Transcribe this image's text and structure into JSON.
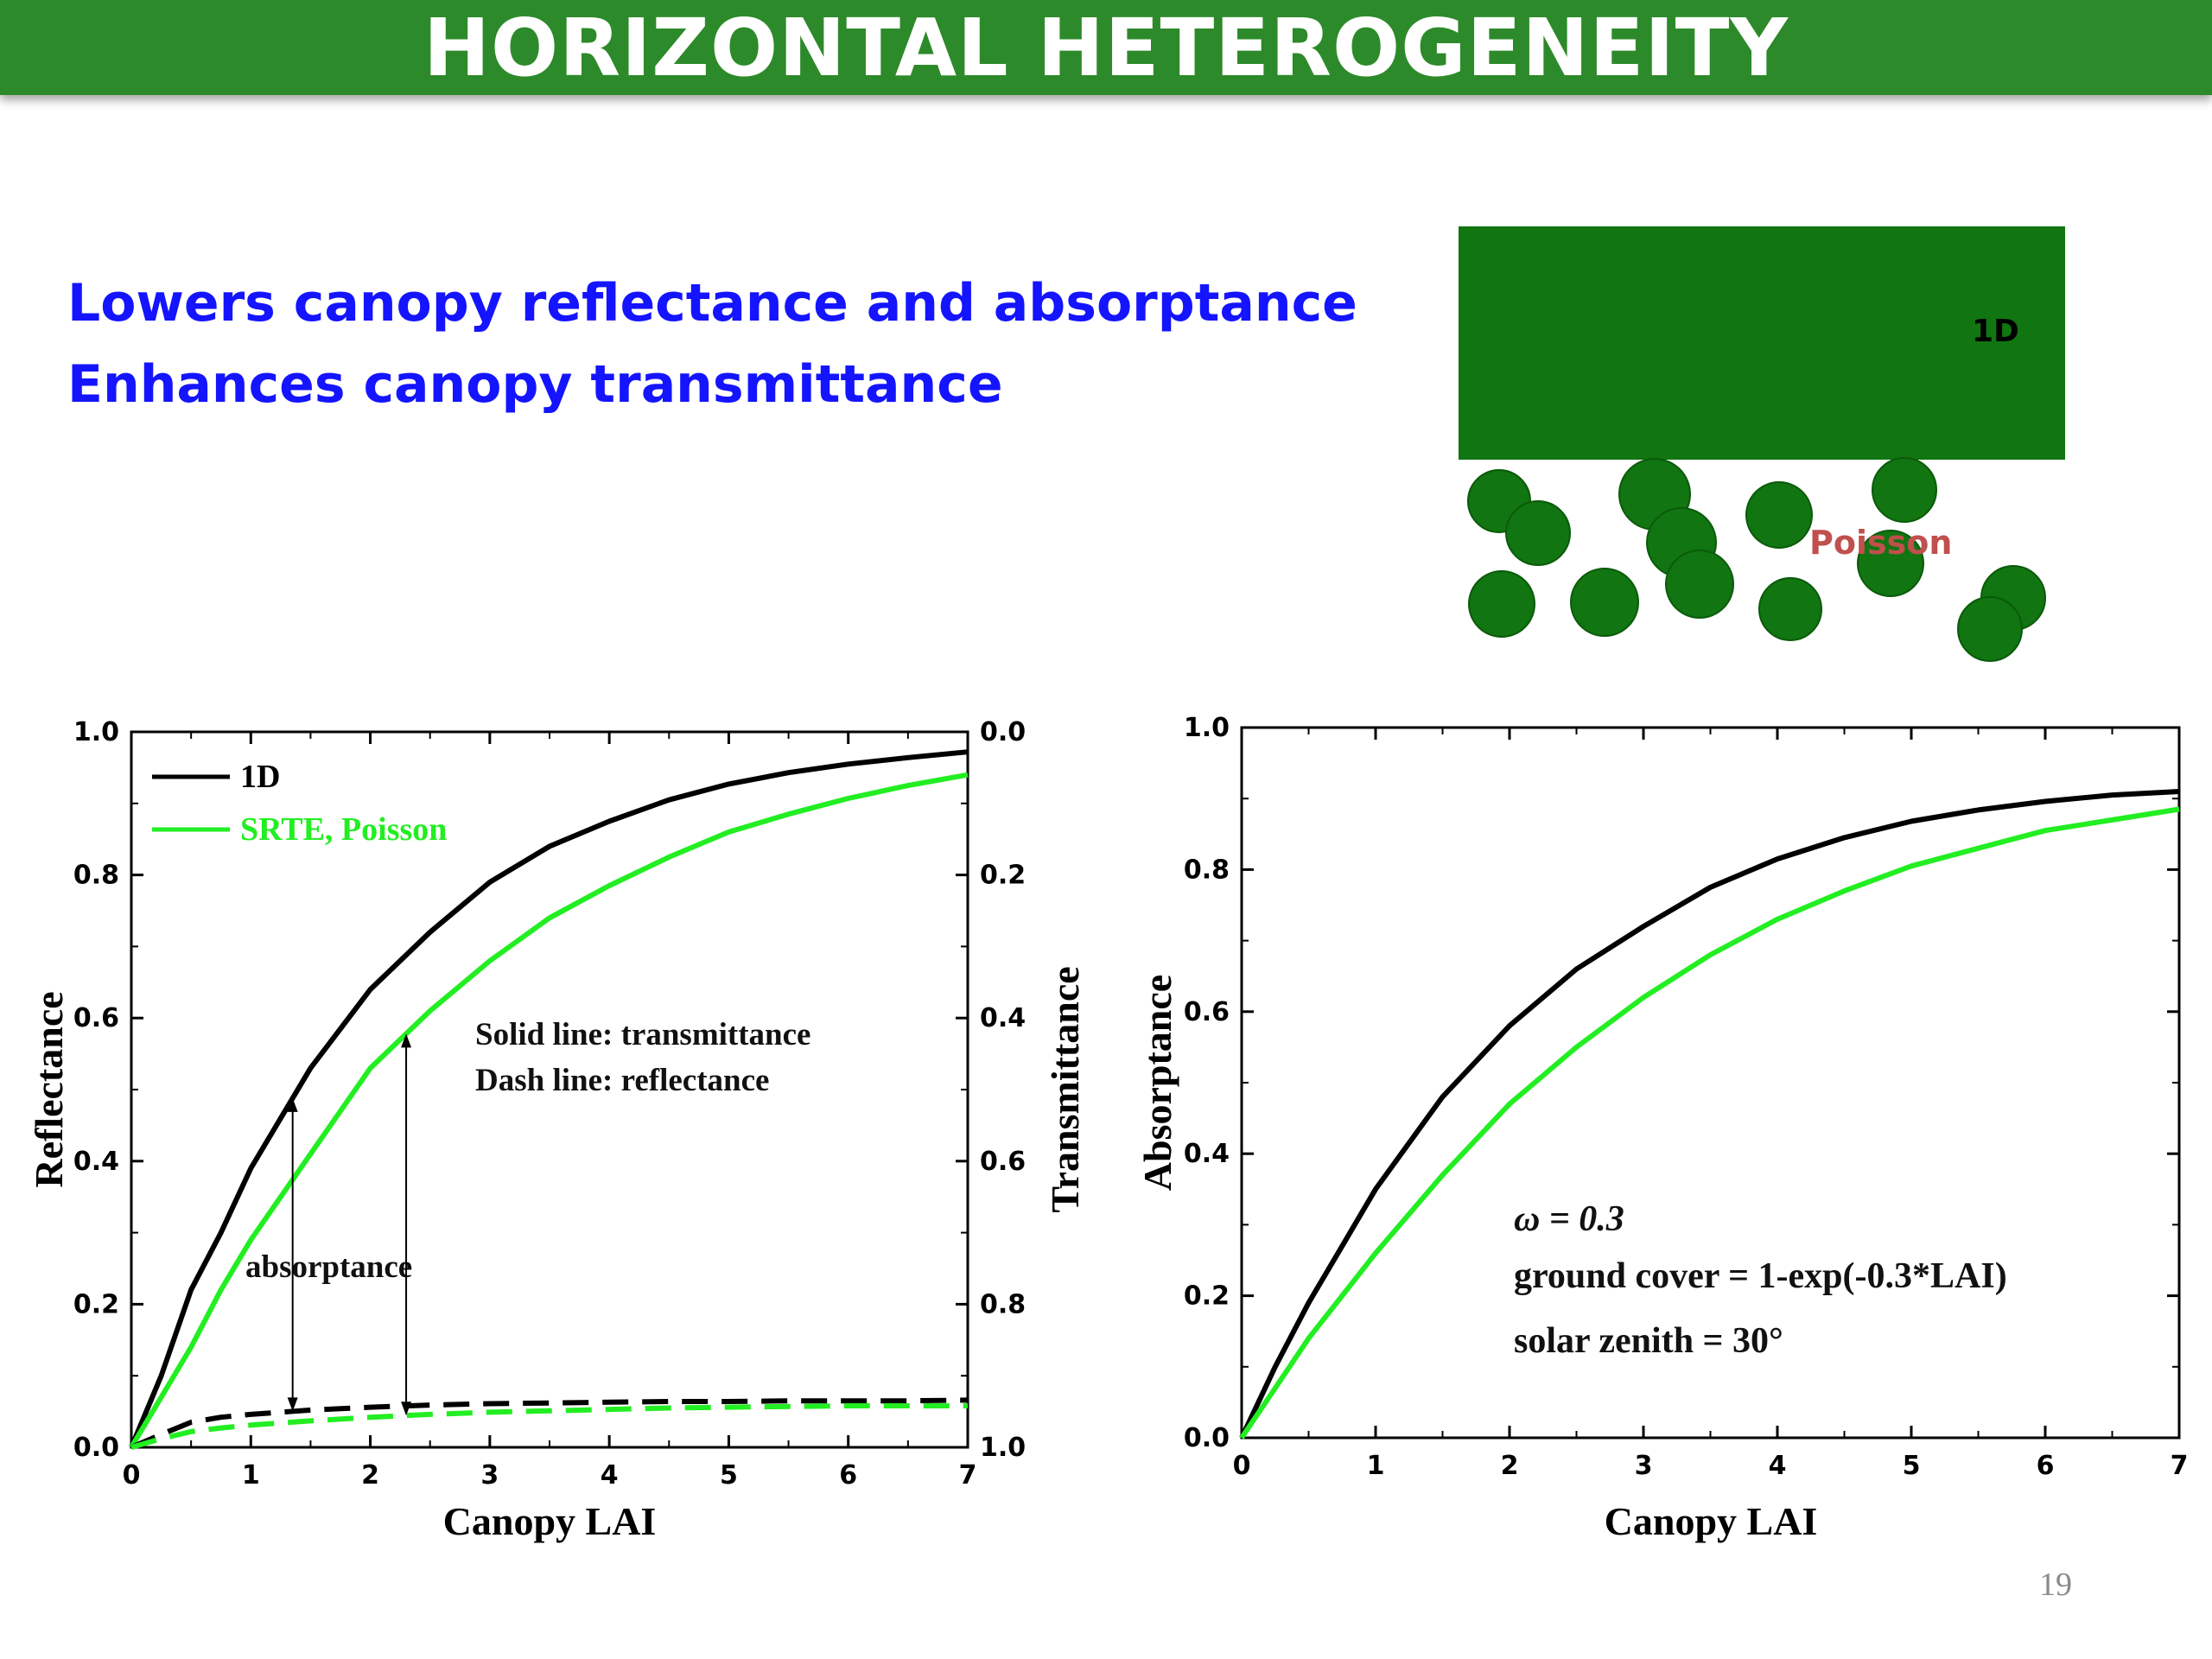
{
  "slide": {
    "title": "HORIZONTAL HETEROGENEITY",
    "bullets": [
      "Lowers canopy reflectance and absorptance",
      "Enhances canopy transmittance"
    ],
    "page_number": "19"
  },
  "diagram": {
    "label_1d": "1D",
    "label_poisson": "Poisson",
    "colors": {
      "canopy": "#117511",
      "leaf_stroke": "#0a5a0a",
      "poisson_label": "#c0504d"
    }
  },
  "colors": {
    "series_1d": "#000000",
    "series_poisson": "#22ee22",
    "accent_blue": "#1414ff",
    "banner": "#2d8a2a"
  },
  "chart_data": [
    {
      "type": "line",
      "xlabel": "Canopy LAI",
      "ylabel": "Reflectance",
      "y2label": "Transmittance",
      "xlim": [
        0,
        7
      ],
      "ylim": [
        0,
        1
      ],
      "y2lim": [
        1,
        0
      ],
      "xticks": [
        "0",
        "1",
        "2",
        "3",
        "4",
        "5",
        "6",
        "7"
      ],
      "yticks": [
        "0.0",
        "0.2",
        "0.4",
        "0.6",
        "0.8",
        "1.0"
      ],
      "y2ticks": [
        "1.0",
        "0.8",
        "0.6",
        "0.4",
        "0.2",
        "0.0"
      ],
      "legend": {
        "placement": "top-left",
        "entries": [
          "1D",
          "SRTE, Poisson"
        ]
      },
      "annotations": [
        "Solid line: transmittance",
        "Dash line: reflectance",
        "absorptance"
      ],
      "x": [
        0,
        0.25,
        0.5,
        0.75,
        1,
        1.5,
        2,
        2.5,
        3,
        3.5,
        4,
        4.5,
        5,
        5.5,
        6,
        6.5,
        7
      ],
      "series": [
        {
          "name": "1D",
          "quantity": "transmittance",
          "style": "solid",
          "color": "#000000",
          "values": [
            1.0,
            0.9,
            0.78,
            0.7,
            0.61,
            0.47,
            0.36,
            0.28,
            0.21,
            0.16,
            0.125,
            0.095,
            0.073,
            0.057,
            0.045,
            0.036,
            0.028
          ]
        },
        {
          "name": "SRTE, Poisson",
          "quantity": "transmittance",
          "style": "solid",
          "color": "#22ee22",
          "values": [
            1.0,
            0.93,
            0.86,
            0.78,
            0.71,
            0.59,
            0.47,
            0.39,
            0.32,
            0.26,
            0.215,
            0.175,
            0.14,
            0.115,
            0.093,
            0.075,
            0.06
          ]
        },
        {
          "name": "1D",
          "quantity": "reflectance",
          "style": "dash",
          "color": "#000000",
          "values": [
            0,
            0.018,
            0.035,
            0.042,
            0.046,
            0.052,
            0.056,
            0.059,
            0.061,
            0.062,
            0.063,
            0.064,
            0.064,
            0.065,
            0.065,
            0.065,
            0.066
          ]
        },
        {
          "name": "SRTE, Poisson",
          "quantity": "reflectance",
          "style": "dash",
          "color": "#22ee22",
          "values": [
            0,
            0.012,
            0.022,
            0.027,
            0.031,
            0.037,
            0.042,
            0.046,
            0.049,
            0.051,
            0.053,
            0.055,
            0.056,
            0.057,
            0.058,
            0.058,
            0.058
          ]
        }
      ]
    },
    {
      "type": "line",
      "xlabel": "Canopy LAI",
      "ylabel": "Absorptance",
      "xlim": [
        0,
        7
      ],
      "ylim": [
        0,
        1
      ],
      "xticks": [
        "0",
        "1",
        "2",
        "3",
        "4",
        "5",
        "6",
        "7"
      ],
      "yticks": [
        "0.0",
        "0.2",
        "0.4",
        "0.6",
        "0.8",
        "1.0"
      ],
      "annotations": [
        "ω = 0.3",
        "ground cover = 1-exp(-0.3*LAI)",
        "solar zenith = 30°"
      ],
      "x": [
        0,
        0.25,
        0.5,
        0.75,
        1,
        1.5,
        2,
        2.5,
        3,
        3.5,
        4,
        4.5,
        5,
        5.5,
        6,
        6.5,
        7
      ],
      "series": [
        {
          "name": "1D",
          "color": "#000000",
          "values": [
            0,
            0.1,
            0.19,
            0.27,
            0.35,
            0.48,
            0.58,
            0.66,
            0.72,
            0.775,
            0.815,
            0.845,
            0.868,
            0.884,
            0.896,
            0.905,
            0.91
          ]
        },
        {
          "name": "SRTE, Poisson",
          "color": "#22ee22",
          "values": [
            0,
            0.07,
            0.14,
            0.2,
            0.26,
            0.37,
            0.47,
            0.55,
            0.62,
            0.68,
            0.73,
            0.77,
            0.805,
            0.83,
            0.855,
            0.87,
            0.885
          ]
        }
      ]
    }
  ]
}
